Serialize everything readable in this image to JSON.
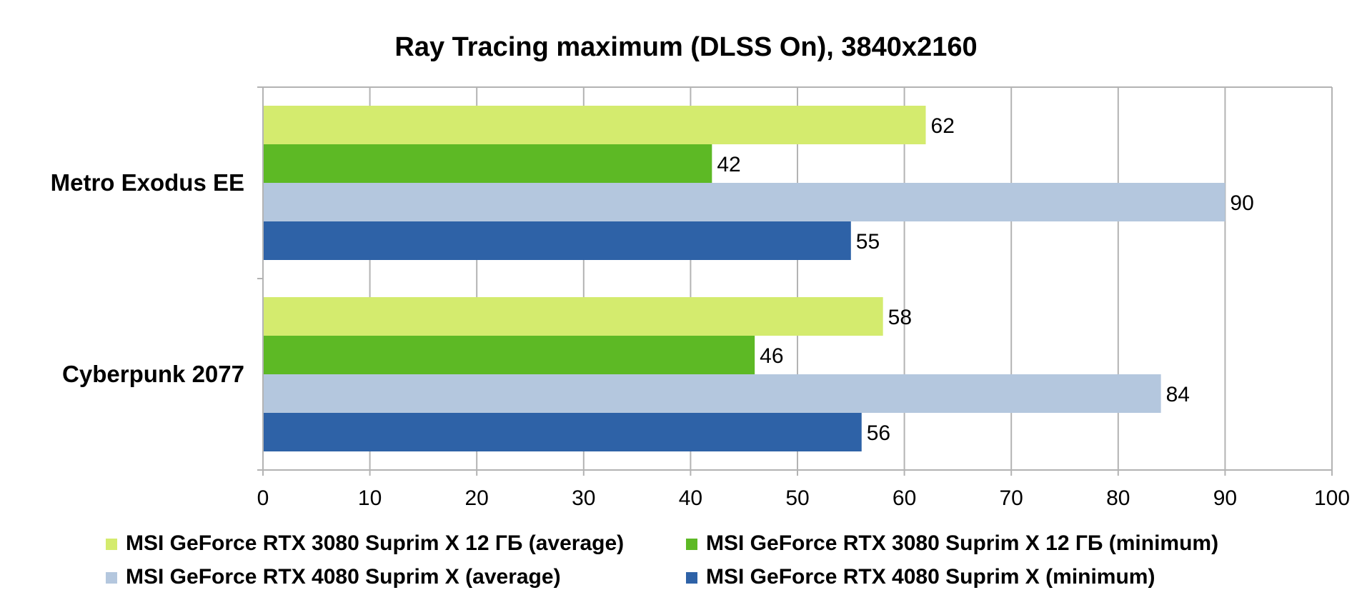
{
  "chart_data": {
    "type": "bar",
    "orientation": "horizontal",
    "title": "Ray Tracing maximum (DLSS On), 3840x2160",
    "categories": [
      "Metro Exodus EE",
      "Cyberpunk 2077"
    ],
    "series": [
      {
        "name": "MSI GeForce RTX 3080 Suprim X 12 ГБ (average)",
        "color": "#d4eb6e",
        "values": [
          62,
          58
        ]
      },
      {
        "name": "MSI GeForce RTX 3080 Suprim X 12 ГБ (minimum)",
        "color": "#5db925",
        "values": [
          42,
          46
        ]
      },
      {
        "name": "MSI GeForce RTX 4080 Suprim X (average)",
        "color": "#b4c7de",
        "values": [
          90,
          84
        ]
      },
      {
        "name": "MSI GeForce RTX 4080 Suprim X (minimum)",
        "color": "#2e62a7",
        "values": [
          55,
          56
        ]
      }
    ],
    "xlim": [
      0,
      100
    ],
    "xticks": [
      0,
      10,
      20,
      30,
      40,
      50,
      60,
      70,
      80,
      90,
      100
    ],
    "xlabel": "",
    "ylabel": "",
    "grid": true,
    "legend_position": "bottom",
    "data_labels": true
  }
}
